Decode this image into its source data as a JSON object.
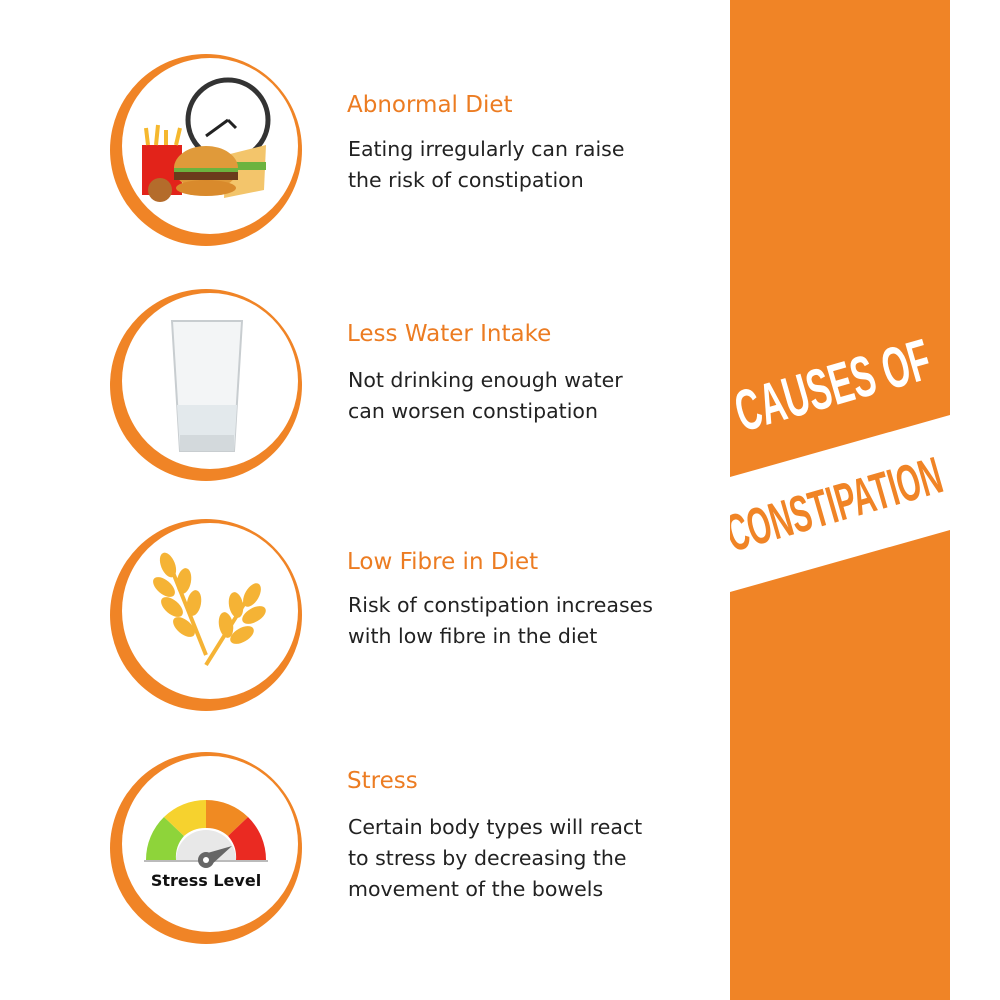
{
  "colors": {
    "accent": "#f08426",
    "text": "#222222"
  },
  "banner": {
    "line1": "CAUSES OF",
    "line2": "CONSTIPATION"
  },
  "items": [
    {
      "icon": "fast-food-clock-icon",
      "title": "Abnormal Diet",
      "desc": [
        "Eating irregularly can raise",
        "the risk of constipation"
      ]
    },
    {
      "icon": "water-glass-icon",
      "title": "Less Water Intake",
      "desc": [
        "Not drinking enough water",
        "can worsen constipation"
      ]
    },
    {
      "icon": "wheat-icon",
      "title": "Low Fibre in Diet",
      "desc": [
        "Risk of constipation increases",
        "with low fibre in the diet"
      ]
    },
    {
      "icon": "stress-gauge-icon",
      "title": "Stress",
      "desc": [
        "Certain body types will react",
        "to stress by decreasing the",
        "movement of the bowels"
      ],
      "icon_label": "Stress Level"
    }
  ]
}
